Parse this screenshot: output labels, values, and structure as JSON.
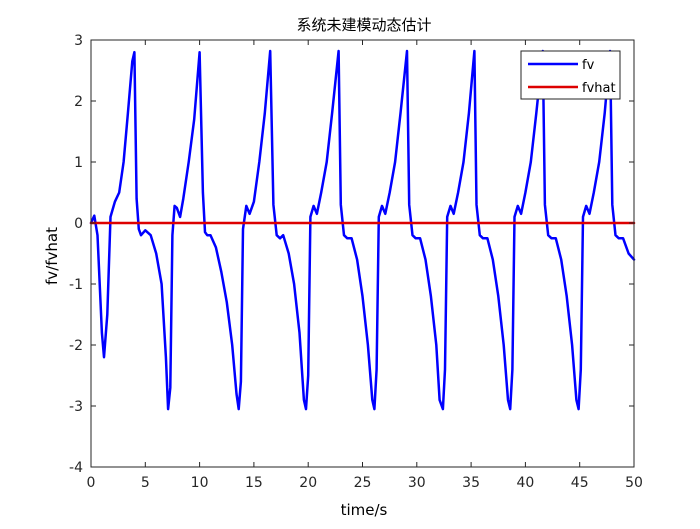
{
  "chart_data": {
    "type": "line",
    "title": "系统未建模动态估计",
    "xlabel": "time/s",
    "ylabel": "fv/fvhat",
    "xlim": [
      0,
      50
    ],
    "ylim": [
      -4,
      3
    ],
    "xticks": [
      0,
      5,
      10,
      15,
      20,
      25,
      30,
      35,
      40,
      45,
      50
    ],
    "yticks": [
      -4,
      -3,
      -2,
      -1,
      0,
      1,
      2,
      3
    ],
    "grid": false,
    "legend_position": "top-right",
    "series": [
      {
        "name": "fv",
        "color": "#0000ff",
        "x": [
          0,
          0.3,
          0.6,
          1.0,
          1.2,
          1.5,
          1.8,
          2.2,
          2.6,
          3.0,
          3.4,
          3.8,
          4.0,
          4.2,
          4.4,
          4.6,
          5.0,
          5.5,
          6.0,
          6.5,
          6.9,
          7.1,
          7.3,
          7.5,
          7.7,
          7.9,
          8.2,
          8.5,
          9.0,
          9.5,
          10.0,
          10.3,
          10.5,
          10.7,
          11.0,
          11.5,
          12.0,
          12.5,
          13.0,
          13.4,
          13.6,
          13.8,
          14.0,
          14.3,
          14.6,
          15.0,
          15.5,
          16.0,
          16.5,
          16.8,
          17.1,
          17.4,
          17.7,
          18.2,
          18.7,
          19.2,
          19.6,
          19.8,
          20.0,
          20.2,
          20.5,
          20.8,
          21.2,
          21.7,
          22.2,
          22.8,
          23.0,
          23.3,
          23.6,
          24.0,
          24.5,
          25.0,
          25.5,
          25.9,
          26.1,
          26.3,
          26.5,
          26.8,
          27.1,
          27.5,
          28.0,
          28.5,
          29.1,
          29.3,
          29.6,
          29.9,
          30.3,
          30.8,
          31.3,
          31.8,
          32.1,
          32.4,
          32.6,
          32.8,
          33.1,
          33.4,
          33.8,
          34.3,
          34.8,
          35.3,
          35.5,
          35.8,
          36.1,
          36.5,
          37.0,
          37.5,
          38.0,
          38.4,
          38.6,
          38.8,
          39.0,
          39.3,
          39.6,
          40.0,
          40.5,
          41.0,
          41.6,
          41.8,
          42.1,
          42.4,
          42.8,
          43.3,
          43.8,
          44.3,
          44.7,
          44.9,
          45.1,
          45.3,
          45.6,
          45.9,
          46.3,
          46.8,
          47.3,
          47.8,
          48.0,
          48.3,
          48.6,
          49.0,
          49.5,
          50.0
        ],
        "y": [
          0,
          0.12,
          -0.2,
          -1.8,
          -2.2,
          -1.5,
          0.1,
          0.35,
          0.5,
          1.0,
          1.8,
          2.65,
          2.8,
          0.4,
          -0.1,
          -0.2,
          -0.12,
          -0.2,
          -0.5,
          -1.0,
          -2.2,
          -3.05,
          -2.7,
          -0.2,
          0.28,
          0.25,
          0.1,
          0.4,
          1.0,
          1.7,
          2.8,
          0.5,
          -0.15,
          -0.2,
          -0.2,
          -0.4,
          -0.8,
          -1.3,
          -2.0,
          -2.8,
          -3.05,
          -2.6,
          -0.1,
          0.28,
          0.15,
          0.35,
          1.0,
          1.8,
          2.82,
          0.3,
          -0.2,
          -0.25,
          -0.2,
          -0.5,
          -1.0,
          -1.8,
          -2.9,
          -3.05,
          -2.5,
          0.1,
          0.28,
          0.15,
          0.5,
          1.0,
          1.8,
          2.82,
          0.3,
          -0.2,
          -0.25,
          -0.25,
          -0.6,
          -1.2,
          -2.0,
          -2.9,
          -3.05,
          -2.4,
          0.1,
          0.28,
          0.15,
          0.5,
          1.0,
          1.8,
          2.82,
          0.3,
          -0.2,
          -0.25,
          -0.25,
          -0.6,
          -1.2,
          -2.0,
          -2.9,
          -3.05,
          -2.4,
          0.1,
          0.28,
          0.15,
          0.5,
          1.0,
          1.8,
          2.82,
          0.3,
          -0.2,
          -0.25,
          -0.25,
          -0.6,
          -1.2,
          -2.0,
          -2.9,
          -3.05,
          -2.4,
          0.1,
          0.28,
          0.15,
          0.5,
          1.0,
          1.8,
          2.82,
          0.3,
          -0.2,
          -0.25,
          -0.25,
          -0.6,
          -1.2,
          -2.0,
          -2.9,
          -3.05,
          -2.4,
          0.1,
          0.28,
          0.15,
          0.5,
          1.0,
          1.8,
          2.82,
          0.3,
          -0.2,
          -0.25,
          -0.25,
          -0.5,
          -0.6
        ]
      },
      {
        "name": "fvhat",
        "color": "#dd0000",
        "x": [
          0,
          50
        ],
        "y": [
          0,
          0
        ]
      }
    ]
  }
}
